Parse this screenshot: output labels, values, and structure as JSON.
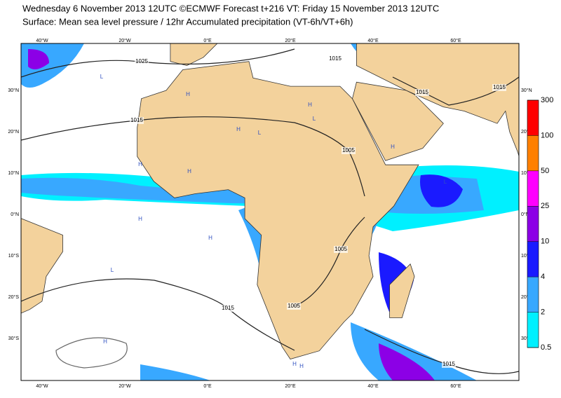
{
  "header": {
    "line1": "Wednesday 6 November 2013 12UTC ©ECMWF Forecast t+216 VT: Friday 15 November 2013 12UTC",
    "line2": "Surface: Mean sea level pressure / 12hr Accumulated precipitation (VT-6h/VT+6h)"
  },
  "map": {
    "lon_labels": [
      "40°W",
      "20°W",
      "0°E",
      "20°E",
      "40°E",
      "60°E"
    ],
    "lat_labels": [
      "30°N",
      "20°N",
      "10°N",
      "0°N",
      "10°S",
      "20°S",
      "30°S"
    ],
    "isobar_labels": [
      "1025",
      "1015",
      "1015",
      "1015",
      "1015",
      "1005",
      "1005",
      "1015",
      "1005",
      "1015"
    ],
    "pressure_centers": [
      "H",
      "H",
      "H",
      "H",
      "L",
      "L",
      "H",
      "H",
      "L",
      "H",
      "H",
      "L",
      "H",
      "H",
      "L",
      "H"
    ]
  },
  "legend": {
    "levels": [
      0.5,
      2,
      4,
      10,
      25,
      50,
      100,
      300
    ],
    "colors": [
      "#00f0ff",
      "#38a8ff",
      "#1a1aff",
      "#8c00e6",
      "#ff00ff",
      "#ff8000",
      "#ff0000"
    ]
  }
}
